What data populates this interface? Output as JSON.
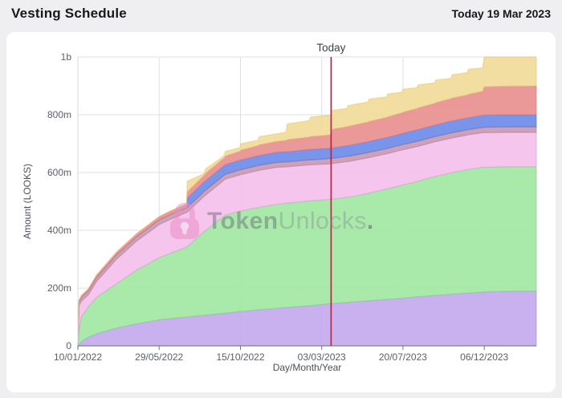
{
  "header": {
    "title": "Vesting Schedule",
    "today_date": "Today 19 Mar 2023"
  },
  "watermark": {
    "brand_bold": "Token",
    "brand_light": "Unlocks",
    "dot": ".",
    "logo_color": "#e98fc4",
    "keyhole_color": "#fbe9f4"
  },
  "layout_colors": {
    "page_bg": "#efeff2",
    "card_bg": "#ffffff",
    "header_text": "#15181d"
  },
  "chart_data": {
    "type": "area",
    "stacked": true,
    "title": "Vesting Schedule",
    "xlabel": "Day/Month/Year",
    "ylabel": "Amount (LOOKS)",
    "value_unit": "millions of LOOKS",
    "x_unit": "days since 10/01/2022",
    "xlim_days": [
      0,
      784
    ],
    "ylim": [
      0,
      1000
    ],
    "grid_on": true,
    "legend": "none",
    "grid_color": "#e0e0e5",
    "axis_color": "#70757e",
    "y_axis_line_color": "#d8d8dd",
    "x_ticks": [
      {
        "day": 0,
        "label": "10/01/2022"
      },
      {
        "day": 139,
        "label": "29/05/2022"
      },
      {
        "day": 278,
        "label": "15/10/2022"
      },
      {
        "day": 417,
        "label": "03/03/2023"
      },
      {
        "day": 556,
        "label": "20/07/2023"
      },
      {
        "day": 695,
        "label": "06/12/2023"
      }
    ],
    "y_ticks": [
      {
        "value": 0,
        "label": "0"
      },
      {
        "value": 200,
        "label": "200m"
      },
      {
        "value": 400,
        "label": "400m"
      },
      {
        "value": 600,
        "label": "600m"
      },
      {
        "value": 800,
        "label": "800m"
      },
      {
        "value": 1000,
        "label": "1b"
      }
    ],
    "today": {
      "day": 433,
      "label": "Today",
      "date": "19 Mar 2023",
      "line_color": "#ad2340"
    },
    "days": [
      0,
      2,
      6,
      18,
      32,
      66,
      100,
      139,
      160,
      186,
      187,
      216,
      218,
      250,
      252,
      277,
      279,
      308,
      310,
      340,
      356,
      358,
      396,
      398,
      429,
      433,
      435,
      460,
      462,
      496,
      498,
      528,
      530,
      554,
      556,
      580,
      582,
      610,
      612,
      638,
      640,
      666,
      668,
      692,
      695,
      730,
      784
    ],
    "series": [
      {
        "name": "purple",
        "fill": "#c5aaee",
        "edge": "#a88fd9",
        "cumulative_top": [
          0,
          5,
          15,
          30,
          42,
          62,
          76,
          90,
          95,
          100,
          100,
          106,
          106,
          113,
          113,
          119,
          119,
          125,
          125,
          130,
          133,
          133,
          139,
          139,
          146,
          147,
          147,
          150,
          151,
          156,
          156,
          161,
          161,
          165,
          165,
          170,
          170,
          175,
          175,
          179,
          179,
          183,
          183,
          186,
          187,
          189,
          190
        ]
      },
      {
        "name": "green",
        "fill": "#a3e7a4",
        "edge": "#88d28c",
        "cumulative_top": [
          0,
          60,
          100,
          135,
          168,
          215,
          262,
          305,
          322,
          342,
          343,
          396,
          399,
          450,
          453,
          466,
          467,
          479,
          480,
          490,
          494,
          494,
          502,
          502,
          507,
          508,
          508,
          514,
          514,
          528,
          529,
          543,
          544,
          556,
          557,
          569,
          570,
          586,
          587,
          599,
          600,
          610,
          611,
          618,
          618,
          620,
          620
        ]
      },
      {
        "name": "pink",
        "fill": "#f4c1ed",
        "edge": "#dba2d3",
        "cumulative_top": [
          0,
          140,
          155,
          177,
          223,
          300,
          362,
          420,
          440,
          462,
          463,
          518,
          521,
          574,
          577,
          592,
          593,
          607,
          608,
          618,
          620,
          620,
          627,
          627,
          630,
          631,
          631,
          638,
          638,
          651,
          652,
          665,
          666,
          678,
          679,
          690,
          691,
          706,
          707,
          719,
          720,
          730,
          731,
          738,
          738,
          739,
          739
        ]
      },
      {
        "name": "mauve",
        "fill": "#c99ab3",
        "edge": "#b5849e",
        "cumulative_top": [
          0,
          154,
          169,
          191,
          237,
          315,
          377,
          436,
          456,
          478,
          479,
          535,
          538,
          591,
          594,
          609,
          610,
          624,
          625,
          635,
          637,
          637,
          644,
          644,
          648,
          649,
          649,
          656,
          656,
          669,
          670,
          683,
          684,
          696,
          697,
          708,
          709,
          724,
          725,
          737,
          738,
          748,
          749,
          756,
          757,
          758,
          758
        ]
      },
      {
        "name": "blue",
        "fill": "#6e8ce9",
        "edge": "#5d77d1",
        "cumulative_top": [
          0,
          154,
          169,
          191,
          237,
          315,
          377,
          436,
          456,
          478,
          511,
          568,
          571,
          624,
          627,
          643,
          644,
          658,
          659,
          670,
          672,
          672,
          680,
          680,
          684,
          685,
          685,
          693,
          693,
          707,
          708,
          721,
          722,
          735,
          736,
          748,
          749,
          764,
          765,
          778,
          779,
          789,
          790,
          798,
          799,
          800,
          800
        ]
      },
      {
        "name": "red",
        "fill": "#ea9090",
        "edge": "#dd7a7a",
        "cumulative_top": [
          0,
          158,
          174,
          197,
          245,
          324,
          387,
          447,
          468,
          490,
          533,
          591,
          597,
          651,
          657,
          674,
          678,
          693,
          696,
          708,
          711,
          714,
          723,
          725,
          730,
          733,
          750,
          759,
          760,
          775,
          777,
          791,
          793,
          807,
          809,
          822,
          824,
          840,
          842,
          856,
          858,
          869,
          871,
          881,
          897,
          899,
          900
        ]
      },
      {
        "name": "yellow",
        "fill": "#f1dc99",
        "edge": "#e3c97e",
        "cumulative_top": [
          0,
          158,
          174,
          197,
          245,
          324,
          387,
          447,
          468,
          490,
          570,
          596,
          612,
          658,
          673,
          686,
          700,
          712,
          724,
          734,
          740,
          768,
          780,
          792,
          798,
          800,
          815,
          822,
          832,
          844,
          854,
          862,
          872,
          878,
          888,
          894,
          904,
          910,
          920,
          926,
          938,
          946,
          958,
          962,
          1000,
          1000,
          1000
        ]
      }
    ]
  }
}
